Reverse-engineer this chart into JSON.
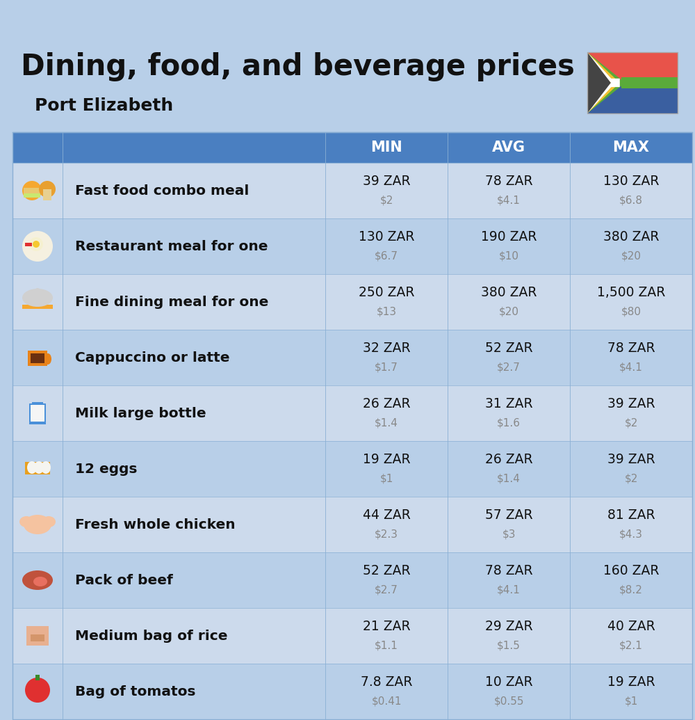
{
  "title": "Dining, food, and beverage prices",
  "subtitle": "Port Elizabeth",
  "bg_color": "#b8cfe8",
  "header_color": "#4a7fc1",
  "header_text_color": "#ffffff",
  "row_color_odd": "#ccdaec",
  "row_color_even": "#b8cfe8",
  "columns": [
    "MIN",
    "AVG",
    "MAX"
  ],
  "rows": [
    {
      "label": "Fast food combo meal",
      "min_zar": "39 ZAR",
      "min_usd": "$2",
      "avg_zar": "78 ZAR",
      "avg_usd": "$4.1",
      "max_zar": "130 ZAR",
      "max_usd": "$6.8"
    },
    {
      "label": "Restaurant meal for one",
      "min_zar": "130 ZAR",
      "min_usd": "$6.7",
      "avg_zar": "190 ZAR",
      "avg_usd": "$10",
      "max_zar": "380 ZAR",
      "max_usd": "$20"
    },
    {
      "label": "Fine dining meal for one",
      "min_zar": "250 ZAR",
      "min_usd": "$13",
      "avg_zar": "380 ZAR",
      "avg_usd": "$20",
      "max_zar": "1,500 ZAR",
      "max_usd": "$80"
    },
    {
      "label": "Cappuccino or latte",
      "min_zar": "32 ZAR",
      "min_usd": "$1.7",
      "avg_zar": "52 ZAR",
      "avg_usd": "$2.7",
      "max_zar": "78 ZAR",
      "max_usd": "$4.1"
    },
    {
      "label": "Milk large bottle",
      "min_zar": "26 ZAR",
      "min_usd": "$1.4",
      "avg_zar": "31 ZAR",
      "avg_usd": "$1.6",
      "max_zar": "39 ZAR",
      "max_usd": "$2"
    },
    {
      "label": "12 eggs",
      "min_zar": "19 ZAR",
      "min_usd": "$1",
      "avg_zar": "26 ZAR",
      "avg_usd": "$1.4",
      "max_zar": "39 ZAR",
      "max_usd": "$2"
    },
    {
      "label": "Fresh whole chicken",
      "min_zar": "44 ZAR",
      "min_usd": "$2.3",
      "avg_zar": "57 ZAR",
      "avg_usd": "$3",
      "max_zar": "81 ZAR",
      "max_usd": "$4.3"
    },
    {
      "label": "Pack of beef",
      "min_zar": "52 ZAR",
      "min_usd": "$2.7",
      "avg_zar": "78 ZAR",
      "avg_usd": "$4.1",
      "max_zar": "160 ZAR",
      "max_usd": "$8.2"
    },
    {
      "label": "Medium bag of rice",
      "min_zar": "21 ZAR",
      "min_usd": "$1.1",
      "avg_zar": "29 ZAR",
      "avg_usd": "$1.5",
      "max_zar": "40 ZAR",
      "max_usd": "$2.1"
    },
    {
      "label": "Bag of tomatos",
      "min_zar": "7.8 ZAR",
      "min_usd": "$0.41",
      "avg_zar": "10 ZAR",
      "avg_usd": "$0.55",
      "max_zar": "19 ZAR",
      "max_usd": "$1"
    }
  ],
  "icon_colors": [
    [
      "#f5a623",
      "#e8834a"
    ],
    [
      "#e8834a",
      "#f5c842"
    ],
    [
      "#c0c0c0",
      "#f5c842"
    ],
    [
      "#e8834a",
      "#6b4226"
    ],
    [
      "#4a90d9",
      "#f5f5f5"
    ],
    [
      "#f5c842",
      "#e8a020"
    ],
    [
      "#f5c3a0",
      "#e89060"
    ],
    [
      "#c0523c",
      "#e87060"
    ],
    [
      "#e8b090",
      "#d4956a"
    ],
    [
      "#e03030",
      "#c02020"
    ]
  ]
}
